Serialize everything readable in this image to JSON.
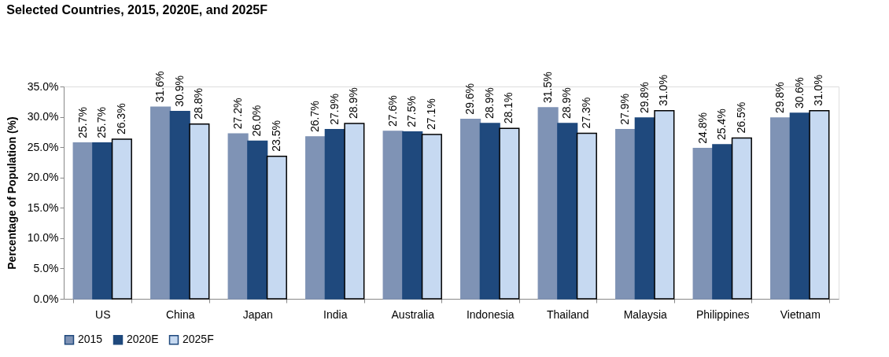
{
  "chart_data": {
    "type": "bar",
    "title": "Selected Countries, 2015, 2020E, and 2025F",
    "ylabel": "Percentage of Population (%)",
    "categories": [
      "US",
      "China",
      "Japan",
      "India",
      "Australia",
      "Indonesia",
      "Thailand",
      "Malaysia",
      "Philippines",
      "Vietnam"
    ],
    "series": [
      {
        "name": "2015",
        "color": "#7f93b5",
        "values": [
          25.7,
          31.6,
          27.2,
          26.7,
          27.6,
          29.6,
          31.5,
          27.9,
          24.8,
          29.8
        ],
        "value_labels": [
          "25.7%",
          "31.6%",
          "27.2%",
          "26.7%",
          "27.6%",
          "29.6%",
          "31.5%",
          "27.9%",
          "24.8%",
          "29.8%"
        ]
      },
      {
        "name": "2020E",
        "color": "#1f497d",
        "values": [
          25.7,
          30.9,
          26.0,
          27.9,
          27.5,
          28.9,
          28.9,
          29.8,
          25.4,
          30.6
        ],
        "value_labels": [
          "25.7%",
          "30.9%",
          "26.0%",
          "27.9%",
          "27.5%",
          "28.9%",
          "28.9%",
          "29.8%",
          "25.4%",
          "30.6%"
        ]
      },
      {
        "name": "2025F",
        "color": "#c6d9f1",
        "values": [
          26.3,
          28.8,
          23.5,
          28.9,
          27.1,
          28.1,
          27.3,
          31.0,
          26.5,
          31.0
        ],
        "value_labels": [
          "26.3%",
          "28.8%",
          "23.5%",
          "28.9%",
          "27.1%",
          "28.1%",
          "27.3%",
          "31.0%",
          "26.5%",
          "31.0%"
        ]
      }
    ],
    "ylim": [
      0,
      35
    ],
    "yticks": [
      {
        "value": 0,
        "label": "0.0%"
      },
      {
        "value": 5,
        "label": "5.0%"
      },
      {
        "value": 10,
        "label": "10.0%"
      },
      {
        "value": 15,
        "label": "15.0%"
      },
      {
        "value": 20,
        "label": "20.0%"
      },
      {
        "value": 25,
        "label": "25.0%"
      },
      {
        "value": 30,
        "label": "30.0%"
      },
      {
        "value": 35,
        "label": "35.0%"
      }
    ],
    "grid": false,
    "legend": "bottom"
  }
}
